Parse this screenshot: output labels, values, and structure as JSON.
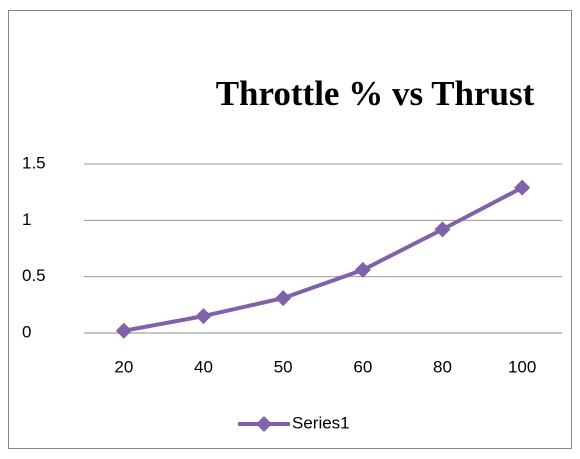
{
  "chart_data": {
    "type": "line",
    "title": "Throttle % vs Thrust",
    "categories": [
      "20",
      "40",
      "50",
      "60",
      "80",
      "100"
    ],
    "series": [
      {
        "name": "Series1",
        "color": "#7f62a8",
        "values": [
          0.02,
          0.15,
          0.31,
          0.56,
          0.92,
          1.29
        ]
      }
    ],
    "ylim": [
      0,
      1.5
    ],
    "yticks": [
      0,
      0.5,
      1,
      1.5
    ],
    "grid": true,
    "legend": "bottom"
  }
}
